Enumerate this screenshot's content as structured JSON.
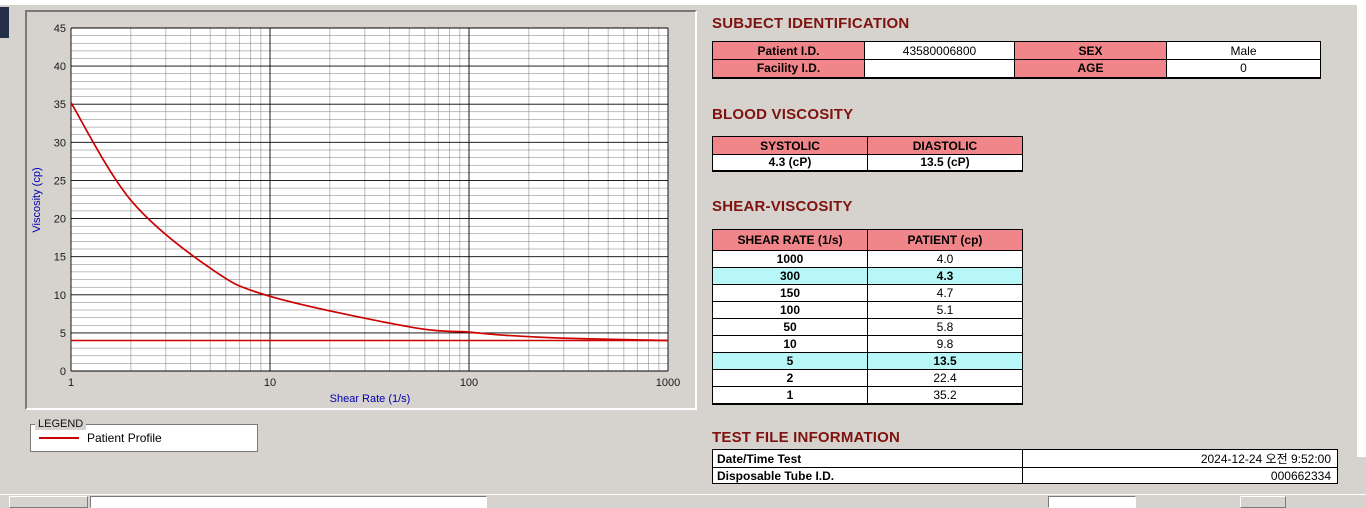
{
  "colors": {
    "window_bg": "#d6d3ce",
    "heading": "#7e120e",
    "header_cell_pink": "#f0868a",
    "highlight_cyan": "#b8f7f7",
    "series_red": "#cc0000",
    "axis_title_blue": "#0000ae"
  },
  "chart_data": {
    "type": "line",
    "title": "",
    "xlabel": "Shear Rate (1/s)",
    "ylabel": "Viscosity (cp)",
    "x_scale": "log",
    "xlim": [
      1,
      1000
    ],
    "ylim": [
      0,
      45
    ],
    "x_ticks": [
      1,
      10,
      100,
      1000
    ],
    "y_ticks": [
      0,
      5,
      10,
      15,
      20,
      25,
      30,
      35,
      40,
      45
    ],
    "grid": "dense black minor grid, log-x, 1-cp minor y steps",
    "legend_position": "below-left group box",
    "series": [
      {
        "name": "Patient Profile",
        "color": "#cc0000",
        "x": [
          1,
          2,
          5,
          10,
          50,
          100,
          150,
          300,
          1000
        ],
        "y": [
          35.2,
          22.4,
          13.5,
          9.8,
          5.8,
          5.1,
          4.7,
          4.3,
          4.0
        ]
      }
    ],
    "reference_line_y": 4.0
  },
  "legend_box": {
    "group_label": "LEGEND",
    "series_label": "Patient Profile"
  },
  "subject": {
    "heading": "SUBJECT IDENTIFICATION",
    "rows": [
      {
        "label1": "Patient I.D.",
        "value1": "43580006800",
        "label2": "SEX",
        "value2": "Male"
      },
      {
        "label1": "Facility I.D.",
        "value1": "",
        "label2": "AGE",
        "value2": "0"
      }
    ]
  },
  "blood_viscosity": {
    "heading": "BLOOD VISCOSITY",
    "col1": "SYSTOLIC",
    "col2": "DIASTOLIC",
    "val1": "4.3 (cP)",
    "val2": "13.5 (cP)"
  },
  "shear_viscosity": {
    "heading": "SHEAR-VISCOSITY",
    "col1": "SHEAR RATE (1/s)",
    "col2": "PATIENT (cp)",
    "rows": [
      {
        "rate": "1000",
        "value": "4.0",
        "highlight": false
      },
      {
        "rate": "300",
        "value": "4.3",
        "highlight": true
      },
      {
        "rate": "150",
        "value": "4.7",
        "highlight": false
      },
      {
        "rate": "100",
        "value": "5.1",
        "highlight": false
      },
      {
        "rate": "50",
        "value": "5.8",
        "highlight": false
      },
      {
        "rate": "10",
        "value": "9.8",
        "highlight": false
      },
      {
        "rate": "5",
        "value": "13.5",
        "highlight": true
      },
      {
        "rate": "2",
        "value": "22.4",
        "highlight": false
      },
      {
        "rate": "1",
        "value": "35.2",
        "highlight": false
      }
    ]
  },
  "test_file": {
    "heading": "TEST FILE INFORMATION",
    "rows": [
      {
        "label": "Date/Time Test",
        "value": "2024-12-24  오전 9:52:00"
      },
      {
        "label": "Disposable Tube I.D.",
        "value": "000662334"
      }
    ]
  }
}
